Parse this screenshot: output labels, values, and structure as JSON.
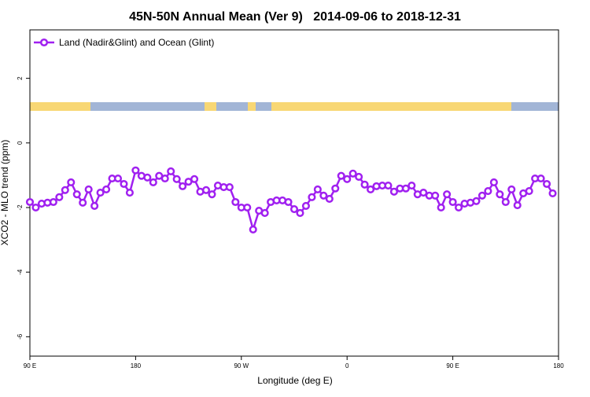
{
  "chart_data": {
    "type": "line",
    "title": "45N-50N Annual Mean (Ver 9)   2014-09-06 to 2018-12-31",
    "x_label": "Longitude (deg E)",
    "y_label": "XCO2 - MLO trend (ppm)",
    "xlim": [
      90,
      540
    ],
    "ylim": [
      -6.6,
      3.5
    ],
    "xticks": [
      {
        "value": 90,
        "label": "90 E"
      },
      {
        "value": 180,
        "label": "180"
      },
      {
        "value": 270,
        "label": "90 W"
      },
      {
        "value": 360,
        "label": "0"
      },
      {
        "value": 450,
        "label": "90 E"
      },
      {
        "value": 540,
        "label": "180"
      }
    ],
    "yticks": [
      -6,
      -4,
      -2,
      0,
      2
    ],
    "legend": "top-left",
    "x": [
      90,
      95,
      100,
      105,
      110,
      115,
      120,
      125,
      130,
      135,
      140,
      145,
      150,
      155,
      160,
      165,
      170,
      175,
      180,
      185,
      190,
      195,
      200,
      205,
      210,
      215,
      220,
      225,
      230,
      235,
      240,
      245,
      250,
      255,
      260,
      265,
      270,
      275,
      280,
      285,
      290,
      295,
      300,
      305,
      310,
      315,
      320,
      325,
      330,
      335,
      340,
      345,
      350,
      355,
      360,
      365,
      370,
      375,
      380,
      385,
      390,
      395,
      400,
      405,
      410,
      415,
      420,
      425,
      430,
      435,
      440,
      445,
      450,
      455,
      460,
      465,
      470,
      475,
      480,
      485,
      490,
      495,
      500,
      505,
      510,
      515,
      520,
      525,
      530,
      535
    ],
    "series": [
      {
        "name": "Land (Nadir&Glint) and Ocean (Glint)",
        "color": "#a020f0",
        "values": [
          -1.83,
          -2.0,
          -1.88,
          -1.85,
          -1.83,
          -1.68,
          -1.46,
          -1.22,
          -1.59,
          -1.85,
          -1.44,
          -1.95,
          -1.54,
          -1.44,
          -1.1,
          -1.1,
          -1.27,
          -1.54,
          -0.85,
          -1.02,
          -1.07,
          -1.22,
          -1.02,
          -1.1,
          -0.88,
          -1.12,
          -1.34,
          -1.2,
          -1.12,
          -1.51,
          -1.46,
          -1.59,
          -1.32,
          -1.37,
          -1.37,
          -1.83,
          -2.0,
          -2.0,
          -2.68,
          -2.1,
          -2.17,
          -1.83,
          -1.78,
          -1.78,
          -1.83,
          -2.05,
          -2.17,
          -1.95,
          -1.68,
          -1.44,
          -1.63,
          -1.73,
          -1.41,
          -1.02,
          -1.12,
          -0.95,
          -1.05,
          -1.29,
          -1.44,
          -1.34,
          -1.32,
          -1.32,
          -1.51,
          -1.41,
          -1.41,
          -1.32,
          -1.59,
          -1.54,
          -1.63,
          -1.63,
          -2.0,
          -1.59,
          -1.83,
          -2.0,
          -1.88,
          -1.85,
          -1.8,
          -1.63,
          -1.49,
          -1.22,
          -1.59,
          -1.83,
          -1.44,
          -1.93,
          -1.56,
          -1.49,
          -1.1,
          -1.1,
          -1.27,
          -1.56
        ]
      }
    ]
  }
}
